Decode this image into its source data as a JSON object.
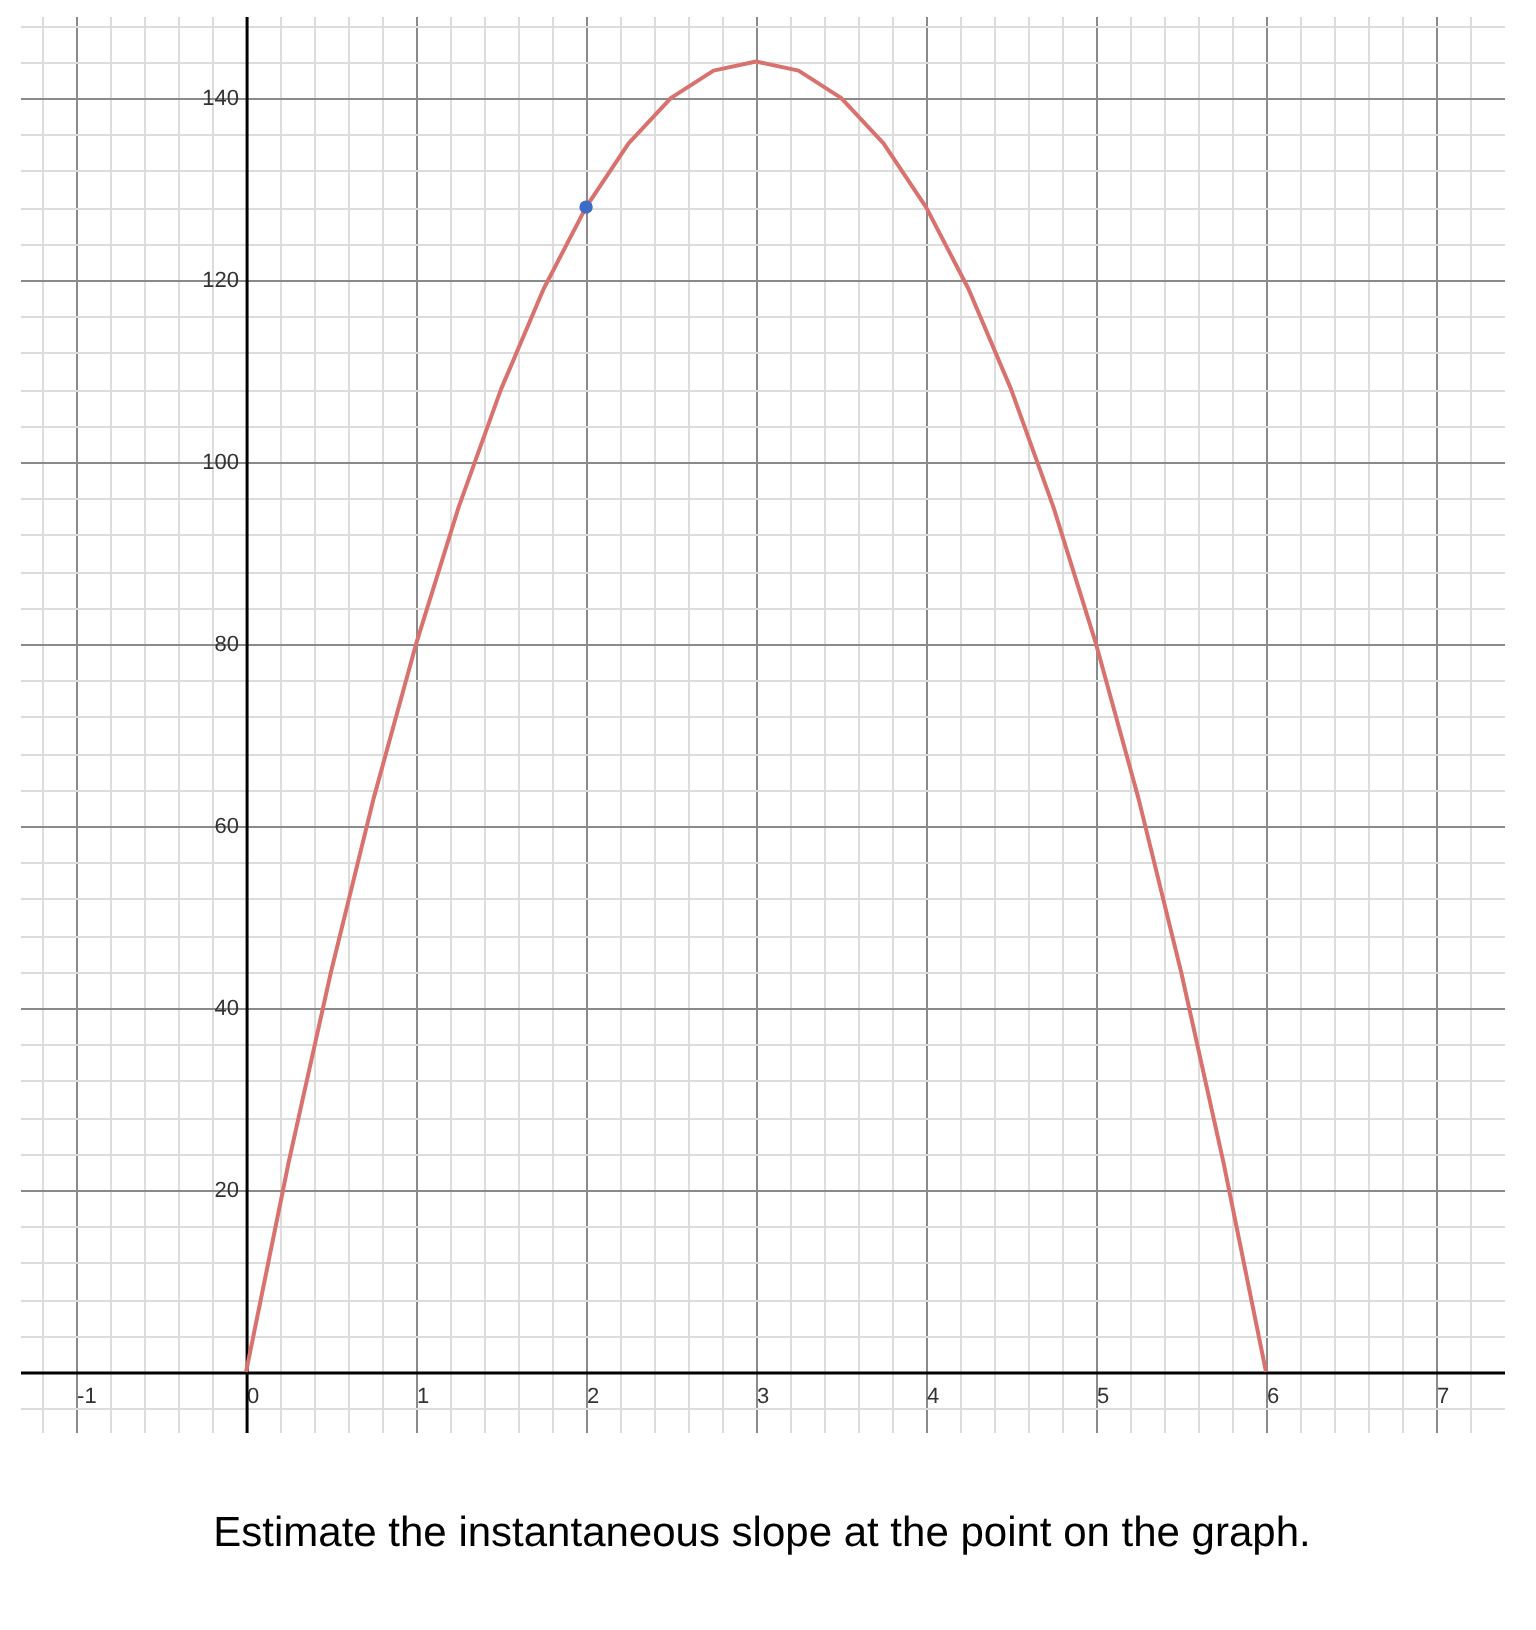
{
  "chart_data": {
    "type": "line",
    "xlim": [
      -1.33,
      7.4
    ],
    "ylim": [
      -6.6,
      149
    ],
    "xticks": [
      {
        "value": -1.2,
        "label": null
      },
      -1,
      {
        "value": -0.8,
        "label": null
      },
      {
        "value": -0.6,
        "label": null
      },
      {
        "value": -0.4,
        "label": null
      },
      {
        "value": -0.2,
        "label": null
      },
      0,
      {
        "value": 0.2,
        "label": null
      },
      {
        "value": 0.4,
        "label": null
      },
      {
        "value": 0.6,
        "label": null
      },
      {
        "value": 0.8,
        "label": null
      },
      1,
      {
        "value": 1.2,
        "label": null
      },
      {
        "value": 1.4,
        "label": null
      },
      {
        "value": 1.6,
        "label": null
      },
      {
        "value": 1.8,
        "label": null
      },
      2,
      {
        "value": 2.2,
        "label": null
      },
      {
        "value": 2.4,
        "label": null
      },
      {
        "value": 2.6,
        "label": null
      },
      {
        "value": 2.8,
        "label": null
      },
      3,
      {
        "value": 3.2,
        "label": null
      },
      {
        "value": 3.4,
        "label": null
      },
      {
        "value": 3.6,
        "label": null
      },
      {
        "value": 3.8,
        "label": null
      },
      4,
      {
        "value": 4.2,
        "label": null
      },
      {
        "value": 4.4,
        "label": null
      },
      {
        "value": 4.6,
        "label": null
      },
      {
        "value": 4.8,
        "label": null
      },
      5,
      {
        "value": 5.2,
        "label": null
      },
      {
        "value": 5.4,
        "label": null
      },
      {
        "value": 5.6,
        "label": null
      },
      {
        "value": 5.8,
        "label": null
      },
      6,
      {
        "value": 6.2,
        "label": null
      },
      {
        "value": 6.4,
        "label": null
      },
      {
        "value": 6.6,
        "label": null
      },
      {
        "value": 6.8,
        "label": null
      },
      7,
      {
        "value": 7.2,
        "label": null
      }
    ],
    "yticks": [
      {
        "value": -4,
        "label": null
      },
      {
        "value": 0,
        "label": null
      },
      {
        "value": 4,
        "label": null
      },
      {
        "value": 8,
        "label": null
      },
      {
        "value": 12,
        "label": null
      },
      {
        "value": 16,
        "label": null
      },
      20,
      {
        "value": 24,
        "label": null
      },
      {
        "value": 28,
        "label": null
      },
      {
        "value": 32,
        "label": null
      },
      {
        "value": 36,
        "label": null
      },
      40,
      {
        "value": 44,
        "label": null
      },
      {
        "value": 48,
        "label": null
      },
      {
        "value": 52,
        "label": null
      },
      {
        "value": 56,
        "label": null
      },
      60,
      {
        "value": 64,
        "label": null
      },
      {
        "value": 68,
        "label": null
      },
      {
        "value": 72,
        "label": null
      },
      {
        "value": 76,
        "label": null
      },
      80,
      {
        "value": 84,
        "label": null
      },
      {
        "value": 88,
        "label": null
      },
      {
        "value": 92,
        "label": null
      },
      {
        "value": 96,
        "label": null
      },
      100,
      {
        "value": 104,
        "label": null
      },
      {
        "value": 108,
        "label": null
      },
      {
        "value": 112,
        "label": null
      },
      {
        "value": 116,
        "label": null
      },
      120,
      {
        "value": 124,
        "label": null
      },
      {
        "value": 128,
        "label": null
      },
      {
        "value": 132,
        "label": null
      },
      {
        "value": 136,
        "label": null
      },
      140,
      {
        "value": 144,
        "label": null
      },
      {
        "value": 148,
        "label": null
      }
    ],
    "grid": true,
    "series": [
      {
        "color": "#d9716f",
        "x": [
          0,
          0.25,
          0.5,
          0.75,
          1,
          1.25,
          1.5,
          1.75,
          2,
          2.25,
          2.5,
          2.75,
          3,
          3.25,
          3.5,
          3.75,
          4,
          4.25,
          4.5,
          4.75,
          5,
          5.25,
          5.5,
          5.75,
          6
        ],
        "values": [
          0,
          23,
          44,
          63,
          80,
          95,
          108,
          119,
          128,
          135,
          140,
          143,
          144,
          143,
          140,
          135,
          128,
          119,
          108,
          95,
          80,
          63,
          44,
          23,
          0
        ]
      },
      {
        "type": "scatter",
        "color": "#3d6cc6",
        "x": [
          2
        ],
        "values": [
          128
        ]
      }
    ],
    "annotations": [
      "Estimate the instantaneous slope at the point on the graph."
    ]
  }
}
